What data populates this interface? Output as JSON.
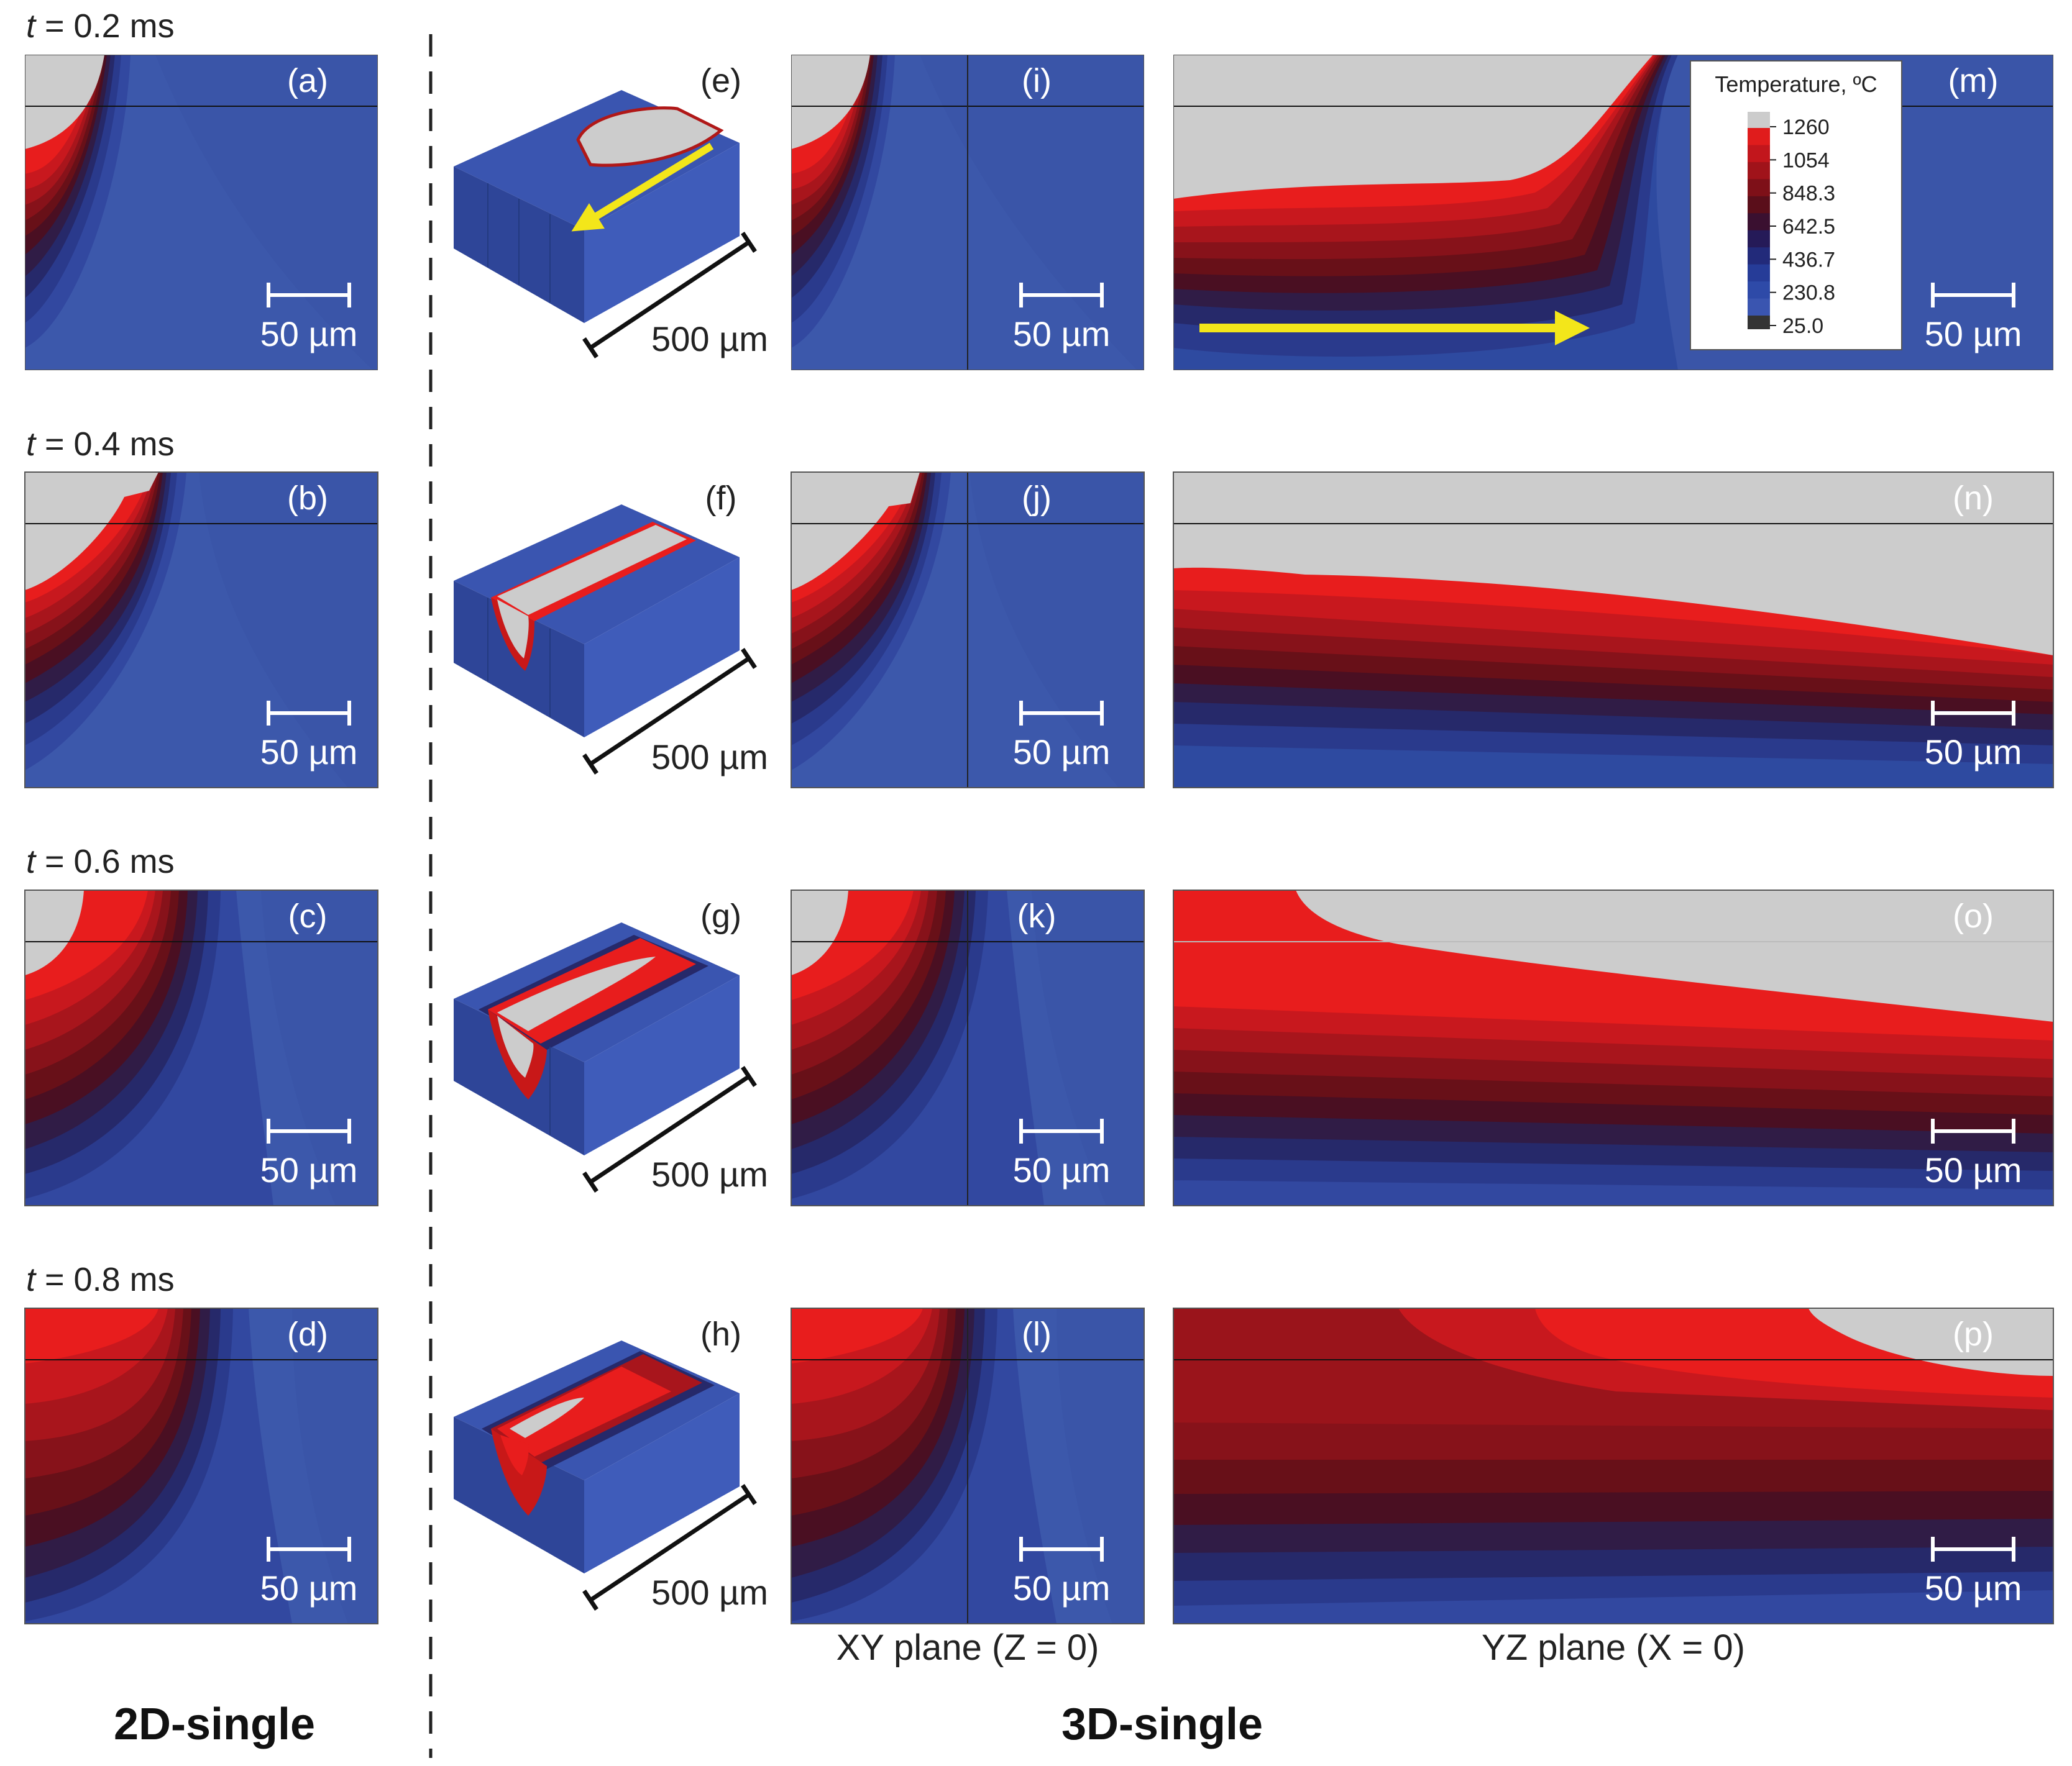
{
  "rows": [
    {
      "time_label": "t = 0.2 ms",
      "time_var": "t",
      "time_rest": " = 0.2 ms",
      "labels": {
        "two_d": "(a)",
        "iso": "(e)",
        "xy": "(i)",
        "yz": "(m)"
      }
    },
    {
      "time_label": "t = 0.4 ms",
      "time_var": "t",
      "time_rest": " = 0.4 ms",
      "labels": {
        "two_d": "(b)",
        "iso": "(f)",
        "xy": "(j)",
        "yz": "(n)"
      }
    },
    {
      "time_label": "t = 0.6 ms",
      "time_var": "t",
      "time_rest": " = 0.6 ms",
      "labels": {
        "two_d": "(c)",
        "iso": "(g)",
        "xy": "(k)",
        "yz": "(o)"
      }
    },
    {
      "time_label": "t = 0.8 ms",
      "time_var": "t",
      "time_rest": " = 0.8 ms",
      "labels": {
        "two_d": "(d)",
        "iso": "(h)",
        "xy": "(l)",
        "yz": "(p)"
      }
    }
  ],
  "scale_bar_small": "50 µm",
  "scale_bar_large": "500 µm",
  "plane_labels": {
    "xy": "XY plane (Z = 0)",
    "yz": "YZ plane (X = 0)"
  },
  "section_labels": {
    "left": "2D-single",
    "right": "3D-single"
  },
  "legend": {
    "title": "Temperature, ºC",
    "ticks": [
      "1260",
      "1054",
      "848.3",
      "642.5",
      "436.7",
      "230.8",
      "25.0"
    ]
  },
  "colors": {
    "melt": "#cccccc",
    "base_blue": "#3a55a8",
    "band": [
      "#e81d1d",
      "#c8181e",
      "#a8151c",
      "#87121a",
      "#681018",
      "#4a0f22",
      "#301c46",
      "#26296a",
      "#2a3a8c",
      "#3248a0"
    ],
    "legend_bands": [
      "#e01c1c",
      "#c2161c",
      "#a0131a",
      "#7e1018",
      "#5a0e1a",
      "#3a1030",
      "#251a58",
      "#222a7a",
      "#263c98",
      "#2e4aa8",
      "#3a55b0"
    ],
    "arrow": "#f3e61a"
  }
}
